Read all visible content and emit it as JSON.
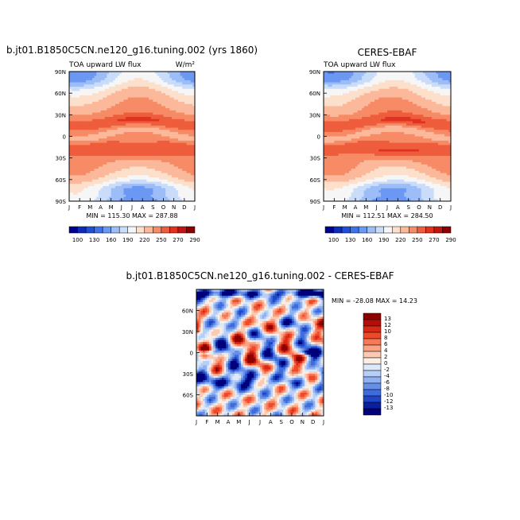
{
  "chart_data": [
    {
      "type": "heatmap",
      "title": "b.jt01.B1850C5CN.ne120_g16.tuning.002 (yrs 1860)",
      "subtitle_left": "TOA upward LW flux",
      "units": "W/m²",
      "x_ticks": [
        "J",
        "F",
        "M",
        "A",
        "M",
        "J",
        "J",
        "A",
        "S",
        "O",
        "N",
        "D",
        "J"
      ],
      "y_ticks": [
        "90N",
        "60N",
        "30N",
        "0",
        "30S",
        "60S",
        "90S"
      ],
      "stats": "MIN = 115.30  MAX = 287.88",
      "min": 115.3,
      "max": 287.88,
      "colorbar_labels": [
        "100",
        "130",
        "160",
        "190",
        "220",
        "250",
        "270",
        "290"
      ],
      "ylim": [
        -90,
        90
      ]
    },
    {
      "type": "heatmap",
      "title": "CERES-EBAF",
      "subtitle_left": "TOA upward LW flux",
      "x_ticks": [
        "J",
        "F",
        "M",
        "A",
        "M",
        "J",
        "J",
        "A",
        "S",
        "O",
        "N",
        "D",
        "J"
      ],
      "y_ticks": [
        "90N",
        "60N",
        "30N",
        "0",
        "30S",
        "60S",
        "90S"
      ],
      "stats": "MIN = 112.51  MAX = 284.50",
      "min": 112.51,
      "max": 284.5,
      "colorbar_labels": [
        "100",
        "130",
        "160",
        "190",
        "220",
        "250",
        "270",
        "290"
      ],
      "ylim": [
        -90,
        90
      ]
    },
    {
      "type": "heatmap",
      "title": "b.jt01.B1850C5CN.ne120_g16.tuning.002 - CERES-EBAF",
      "x_ticks": [
        "J",
        "F",
        "M",
        "A",
        "M",
        "J",
        "J",
        "A",
        "S",
        "O",
        "N",
        "D",
        "J"
      ],
      "y_ticks": [
        "60N",
        "30N",
        "0",
        "30S",
        "60S"
      ],
      "stats": "MIN = -28.08  MAX =  14.23",
      "min": -28.08,
      "max": 14.23,
      "colorbar_labels": [
        "13",
        "12",
        "10",
        "8",
        "6",
        "4",
        "2",
        "0",
        "-2",
        "-4",
        "-6",
        "-8",
        "-10",
        "-12",
        "-13"
      ],
      "ylim": [
        -90,
        90
      ]
    }
  ],
  "colors": {
    "abs_scale": [
      "#00008f",
      "#0c2db8",
      "#1f4fd8",
      "#3d72ea",
      "#6b98f2",
      "#9cbdf7",
      "#c9dcfa",
      "#f6f6f6",
      "#fde0cc",
      "#fbb89a",
      "#f78b66",
      "#ee5d3c",
      "#df3220",
      "#c0160f",
      "#8c0000"
    ],
    "diff_scale": [
      "#8c0000",
      "#b30f0a",
      "#d62a17",
      "#ee4a2a",
      "#f77858",
      "#faa384",
      "#fcc9b2",
      "#fdeee4",
      "#dce9fb",
      "#b7cef7",
      "#8fb1f1",
      "#6690e8",
      "#3f6cdd",
      "#1f46c4",
      "#0a1f9c",
      "#00007a"
    ]
  }
}
